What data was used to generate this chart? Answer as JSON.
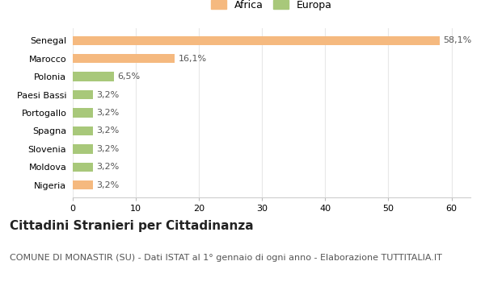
{
  "categories": [
    "Nigeria",
    "Moldova",
    "Slovenia",
    "Spagna",
    "Portogallo",
    "Paesi Bassi",
    "Polonia",
    "Marocco",
    "Senegal"
  ],
  "values": [
    3.2,
    3.2,
    3.2,
    3.2,
    3.2,
    3.2,
    6.5,
    16.1,
    58.1
  ],
  "labels": [
    "3,2%",
    "3,2%",
    "3,2%",
    "3,2%",
    "3,2%",
    "3,2%",
    "6,5%",
    "16,1%",
    "58,1%"
  ],
  "colors": [
    "#f5b97f",
    "#a8c87a",
    "#a8c87a",
    "#a8c87a",
    "#a8c87a",
    "#a8c87a",
    "#a8c87a",
    "#f5b97f",
    "#f5b97f"
  ],
  "africa_color": "#f5b97f",
  "europa_color": "#a8c87a",
  "xlim": [
    0,
    63
  ],
  "xticks": [
    0,
    10,
    20,
    30,
    40,
    50,
    60
  ],
  "title": "Cittadini Stranieri per Cittadinanza",
  "subtitle": "COMUNE DI MONASTIR (SU) - Dati ISTAT al 1° gennaio di ogni anno - Elaborazione TUTTITALIA.IT",
  "bg_color": "#ffffff",
  "grid_color": "#e8e8e8",
  "legend_africa": "Africa",
  "legend_europa": "Europa",
  "title_fontsize": 11,
  "subtitle_fontsize": 8,
  "label_fontsize": 8,
  "tick_fontsize": 8,
  "bar_height": 0.5
}
